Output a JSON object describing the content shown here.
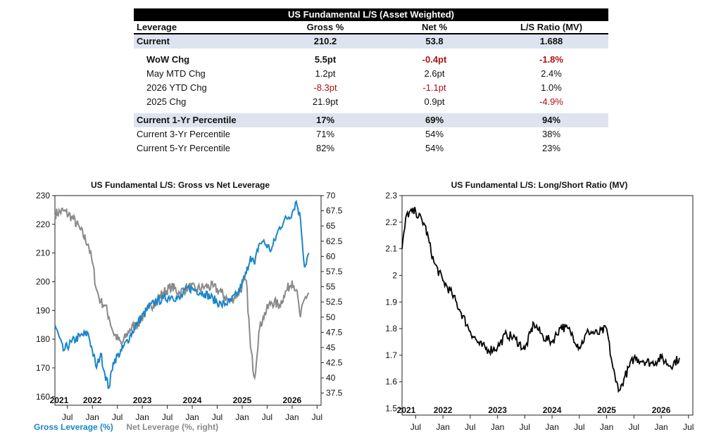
{
  "table": {
    "title": "US Fundamental L/S (Asset Weighted)",
    "headers": [
      "Leverage",
      "Gross %",
      "Net %",
      "L/S Ratio (MV)"
    ],
    "rows": [
      {
        "label": "Current",
        "gross": "210.2",
        "net": "53.8",
        "ratio": "1.688",
        "style": "hl"
      },
      {
        "label": "WoW Chg",
        "gross": "5.5pt",
        "net": "-0.4pt",
        "ratio": "-1.8%",
        "style": "bold"
      },
      {
        "label": "May MTD Chg",
        "gross": "1.2pt",
        "net": "2.6pt",
        "ratio": "2.4%",
        "style": ""
      },
      {
        "label": "2026 YTD Chg",
        "gross": "-8.3pt",
        "net": "-1.1pt",
        "ratio": "1.0%",
        "style": ""
      },
      {
        "label": "2025 Chg",
        "gross": "21.9pt",
        "net": "0.9pt",
        "ratio": "-4.9%",
        "style": ""
      },
      {
        "label": "Current 1-Yr Percentile",
        "gross": "17%",
        "net": "69%",
        "ratio": "94%",
        "style": "hl"
      },
      {
        "label": "Current 3-Yr Percentile",
        "gross": "71%",
        "net": "54%",
        "ratio": "38%",
        "style": ""
      },
      {
        "label": "Current 5-Yr Percentile",
        "gross": "82%",
        "net": "54%",
        "ratio": "23%",
        "style": ""
      }
    ]
  },
  "colors": {
    "gross": "#1a86c8",
    "net": "#8a8a8a",
    "ratio": "#000000",
    "negative": "#b01010",
    "highlight": "#dde4ef"
  },
  "chart_data": [
    {
      "type": "line",
      "title": "US Fundamental L/S: Gross vs Net Leverage",
      "x_tick_labels": [
        "Jul",
        "Jan",
        "Jul",
        "Jan",
        "Jul",
        "Jan",
        "Jul",
        "Jan",
        "Jul",
        "Jan",
        "Jul"
      ],
      "year_labels": [
        "2021",
        "2022",
        "2023",
        "2024",
        "2025",
        "2026"
      ],
      "ylim_left": [
        157,
        230
      ],
      "yticks_left": [
        160,
        170,
        180,
        190,
        200,
        210,
        220,
        230
      ],
      "ylim_right": [
        35.5,
        70
      ],
      "yticks_right": [
        "37.5",
        "40",
        "42.5",
        "45",
        "47.5",
        "50",
        "52.5",
        "55",
        "57.5",
        "60",
        "62.5",
        "65",
        "67.5",
        "70"
      ],
      "grid": false,
      "series": [
        {
          "name": "Gross Leverage (%)",
          "axis": "left",
          "x": [
            "2021-04",
            "2021-06",
            "2021-08",
            "2021-10",
            "2021-12",
            "2022-01",
            "2022-02",
            "2022-03",
            "2022-04",
            "2022-05",
            "2022-06",
            "2022-08",
            "2022-10",
            "2022-12",
            "2023-02",
            "2023-04",
            "2023-06",
            "2023-08",
            "2023-10",
            "2023-12",
            "2024-02",
            "2024-04",
            "2024-06",
            "2024-08",
            "2024-10",
            "2024-12",
            "2025-02",
            "2025-03",
            "2025-04",
            "2025-05",
            "2025-06",
            "2025-08",
            "2025-10",
            "2025-11",
            "2026-01",
            "2026-02",
            "2026-03",
            "2026-04",
            "2026-05"
          ],
          "y": [
            185,
            176,
            179,
            181,
            182,
            176,
            170,
            175,
            168,
            163,
            172,
            176,
            181,
            186,
            190,
            193,
            194,
            195,
            194,
            198,
            197,
            196,
            194,
            192,
            193,
            196,
            203,
            209,
            206,
            213,
            214,
            211,
            219,
            221,
            224,
            228,
            222,
            205,
            210
          ]
        },
        {
          "name": "Net Leverage (%, right)",
          "axis": "right",
          "x": [
            "2021-04",
            "2021-06",
            "2021-08",
            "2021-10",
            "2021-12",
            "2022-01",
            "2022-02",
            "2022-03",
            "2022-04",
            "2022-05",
            "2022-06",
            "2022-08",
            "2022-10",
            "2022-12",
            "2023-02",
            "2023-04",
            "2023-06",
            "2023-08",
            "2023-10",
            "2023-12",
            "2024-02",
            "2024-04",
            "2024-06",
            "2024-08",
            "2024-10",
            "2024-12",
            "2025-02",
            "2025-03",
            "2025-04",
            "2025-05",
            "2025-06",
            "2025-08",
            "2025-10",
            "2025-11",
            "2026-01",
            "2026-02",
            "2026-03",
            "2026-04",
            "2026-05"
          ],
          "y": [
            67,
            67.5,
            66.5,
            64.5,
            62,
            59,
            54.5,
            52.5,
            52,
            50,
            47.5,
            45.5,
            48,
            49,
            51,
            52.5,
            54,
            55,
            54,
            55,
            54.5,
            55,
            55,
            54,
            52.5,
            54,
            56,
            45,
            40,
            47.5,
            50,
            52.5,
            52,
            53.5,
            56,
            54.5,
            50,
            53,
            54
          ]
        }
      ]
    },
    {
      "type": "line",
      "title": "US Fundamental L/S: Long/Short Ratio (MV)",
      "x_tick_labels": [
        "Jul",
        "Jan",
        "Jul",
        "Jan",
        "Jul",
        "Jan",
        "Jul",
        "Jan",
        "Jul",
        "Jan",
        "Jul"
      ],
      "year_labels": [
        "2021",
        "2022",
        "2023",
        "2024",
        "2025",
        "2026"
      ],
      "ylim": [
        1.475,
        2.3
      ],
      "yticks": [
        "1.5",
        "1.6",
        "1.7",
        "1.8",
        "1.9",
        "2",
        "2.1",
        "2.2",
        "2.3"
      ],
      "grid": false,
      "series": [
        {
          "name": "",
          "axis": "left",
          "x": [
            "2021-04",
            "2021-05",
            "2021-07",
            "2021-09",
            "2021-11",
            "2022-01",
            "2022-03",
            "2022-05",
            "2022-07",
            "2022-09",
            "2022-11",
            "2023-01",
            "2023-03",
            "2023-05",
            "2023-07",
            "2023-09",
            "2023-11",
            "2024-01",
            "2024-03",
            "2024-05",
            "2024-07",
            "2024-09",
            "2024-11",
            "2025-01",
            "2025-02",
            "2025-03",
            "2025-04",
            "2025-05",
            "2025-07",
            "2025-09",
            "2025-11",
            "2026-01",
            "2026-03",
            "2026-05"
          ],
          "y": [
            2.1,
            2.23,
            2.24,
            2.19,
            2.05,
            1.98,
            1.93,
            1.86,
            1.79,
            1.74,
            1.72,
            1.73,
            1.78,
            1.76,
            1.72,
            1.82,
            1.77,
            1.75,
            1.81,
            1.79,
            1.73,
            1.79,
            1.78,
            1.8,
            1.69,
            1.6,
            1.57,
            1.62,
            1.69,
            1.68,
            1.67,
            1.69,
            1.66,
            1.69
          ]
        }
      ]
    }
  ]
}
